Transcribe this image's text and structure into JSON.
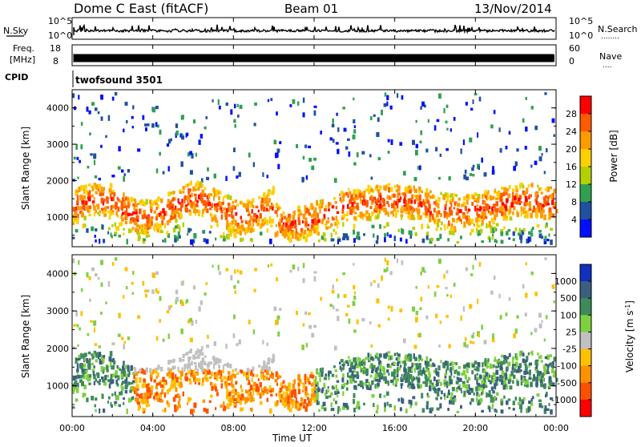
{
  "header": {
    "station": "Dome C East (fitACF)",
    "beam": "Beam 01",
    "date": "13/Nov/2014"
  },
  "noise_panel": {
    "left_label": "N.Sky",
    "right_label": "N.Search",
    "right_suffix": "........",
    "left_ticks": [
      "10^5",
      "10^0"
    ],
    "right_ticks": [
      "10^5",
      "10^0"
    ]
  },
  "freq_panel": {
    "left_label_1": "Freq.",
    "left_label_2": "[MHz]",
    "right_label": "Nave",
    "right_suffix": "....",
    "left_ticks": [
      "18",
      "8"
    ],
    "right_ticks": [
      "60",
      "0"
    ]
  },
  "cpid": {
    "label": "CPID",
    "program": "twofsound 3501"
  },
  "chart_data": [
    {
      "type": "heatmap",
      "quantity": "Power",
      "ylabel": "Slant Range [km]",
      "ylim": [
        180,
        4500
      ],
      "yticks": [
        "1000",
        "2000",
        "3000",
        "4000"
      ],
      "colorbar_label": "Power [dB]",
      "colorbar_ticks": [
        "28",
        "24",
        "20",
        "16",
        "12",
        "8",
        "4"
      ],
      "colorbar_colors": [
        "#ff0000",
        "#ff5a00",
        "#ff9a00",
        "#ffd000",
        "#b4d000",
        "#30a050",
        "#2050a0",
        "#0010ff"
      ]
    },
    {
      "type": "heatmap",
      "quantity": "Velocity",
      "ylabel": "Slant Range [km]",
      "ylim": [
        180,
        4500
      ],
      "yticks": [
        "1000",
        "2000",
        "3000",
        "4000"
      ],
      "xlabel": "Time UT",
      "xticks": [
        "00:00",
        "04:00",
        "08:00",
        "12:00",
        "16:00",
        "20:00",
        "00:00"
      ],
      "colorbar_label": "Velocity [m s",
      "colorbar_label_sup": "-1",
      "colorbar_label_end": "]",
      "colorbar_ticks": [
        "1000",
        "500",
        "100",
        "25",
        "-25",
        "-100",
        "-500",
        "-1000"
      ],
      "colorbar_colors": [
        "#1030c0",
        "#3a6080",
        "#3f8a5a",
        "#7fd040",
        "#c0c0c0",
        "#ffc000",
        "#ff9000",
        "#ff5000",
        "#ff0000"
      ]
    }
  ]
}
